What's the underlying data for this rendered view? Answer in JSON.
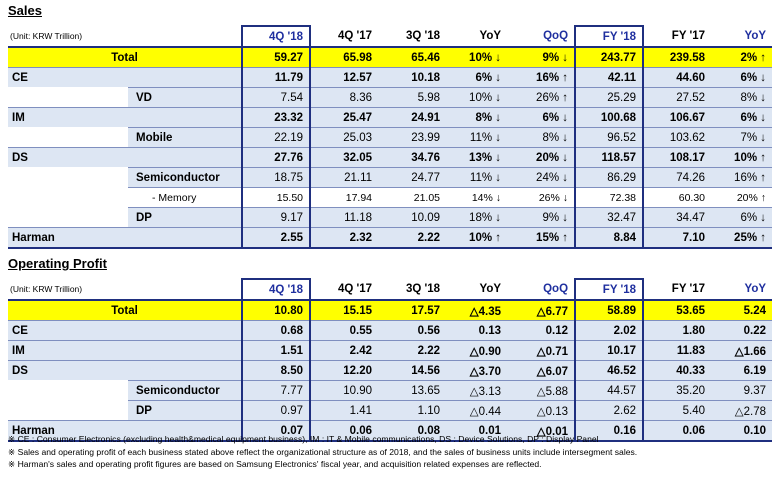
{
  "sales": {
    "title": "Sales",
    "unit": "(Unit: KRW Trillion)",
    "headers": [
      "4Q '18",
      "4Q '17",
      "3Q '18",
      "YoY",
      "QoQ",
      "FY '18",
      "FY '17",
      "YoY"
    ],
    "rows": [
      {
        "label": "Total",
        "values": [
          "59.27",
          "65.98",
          "65.46",
          "10% ↓",
          "9% ↓",
          "243.77",
          "239.58",
          "2% ↑"
        ]
      },
      {
        "label": "CE",
        "values": [
          "11.79",
          "12.57",
          "10.18",
          "6% ↓",
          "16% ↑",
          "42.11",
          "44.60",
          "6% ↓"
        ]
      },
      {
        "label": "VD",
        "values": [
          "7.54",
          "8.36",
          "5.98",
          "10% ↓",
          "26% ↑",
          "25.29",
          "27.52",
          "8% ↓"
        ]
      },
      {
        "label": "IM",
        "values": [
          "23.32",
          "25.47",
          "24.91",
          "8% ↓",
          "6% ↓",
          "100.68",
          "106.67",
          "6% ↓"
        ]
      },
      {
        "label": "Mobile",
        "values": [
          "22.19",
          "25.03",
          "23.99",
          "11% ↓",
          "8% ↓",
          "96.52",
          "103.62",
          "7% ↓"
        ]
      },
      {
        "label": "DS",
        "values": [
          "27.76",
          "32.05",
          "34.76",
          "13% ↓",
          "20% ↓",
          "118.57",
          "108.17",
          "10% ↑"
        ]
      },
      {
        "label": "Semiconductor",
        "values": [
          "18.75",
          "21.11",
          "24.77",
          "11% ↓",
          "24% ↓",
          "86.29",
          "74.26",
          "16% ↑"
        ]
      },
      {
        "label": "- Memory",
        "values": [
          "15.50",
          "17.94",
          "21.05",
          "14% ↓",
          "26% ↓",
          "72.38",
          "60.30",
          "20% ↑"
        ]
      },
      {
        "label": "DP",
        "values": [
          "9.17",
          "11.18",
          "10.09",
          "18% ↓",
          "9% ↓",
          "32.47",
          "34.47",
          "6% ↓"
        ]
      },
      {
        "label": "Harman",
        "values": [
          "2.55",
          "2.32",
          "2.22",
          "10% ↑",
          "15% ↑",
          "8.84",
          "7.10",
          "25% ↑"
        ]
      }
    ]
  },
  "op": {
    "title": "Operating Profit",
    "unit": "(Unit: KRW Trillion)",
    "headers": [
      "4Q '18",
      "4Q '17",
      "3Q '18",
      "YoY",
      "QoQ",
      "FY '18",
      "FY '17",
      "YoY"
    ],
    "rows": [
      {
        "label": "Total",
        "values": [
          "10.80",
          "15.15",
          "17.57",
          "△4.35",
          "△6.77",
          "58.89",
          "53.65",
          "5.24"
        ]
      },
      {
        "label": "CE",
        "values": [
          "0.68",
          "0.55",
          "0.56",
          "0.13",
          "0.12",
          "2.02",
          "1.80",
          "0.22"
        ]
      },
      {
        "label": "IM",
        "values": [
          "1.51",
          "2.42",
          "2.22",
          "△0.90",
          "△0.71",
          "10.17",
          "11.83",
          "△1.66"
        ]
      },
      {
        "label": "DS",
        "values": [
          "8.50",
          "12.20",
          "14.56",
          "△3.70",
          "△6.07",
          "46.52",
          "40.33",
          "6.19"
        ]
      },
      {
        "label": "Semiconductor",
        "values": [
          "7.77",
          "10.90",
          "13.65",
          "△3.13",
          "△5.88",
          "44.57",
          "35.20",
          "9.37"
        ]
      },
      {
        "label": "DP",
        "values": [
          "0.97",
          "1.41",
          "1.10",
          "△0.44",
          "△0.13",
          "2.62",
          "5.40",
          "△2.78"
        ]
      },
      {
        "label": "Harman",
        "values": [
          "0.07",
          "0.06",
          "0.08",
          "0.01",
          "△0.01",
          "0.16",
          "0.06",
          "0.10"
        ]
      }
    ]
  },
  "notes": [
    "※ CE : Consumer Electronics (excluding health&medical equipment business),  IM : IT & Mobile communications,  DS : Device Solutions,  DP : Display Panel",
    "※ Sales and operating profit of each business stated above reflect the organizational structure  as of 2018, and the sales of business units include intersegment sales.",
    "※ Harman's sales and operating profit figures are based on Samsung Electronics' fiscal year, and acquisition related expenses are reflected."
  ],
  "colors": {
    "total_row": "#ffff00",
    "segment_row": "#dde6f3",
    "box_border": "#1f2f7f",
    "header_blue": "#1f2f9f"
  }
}
